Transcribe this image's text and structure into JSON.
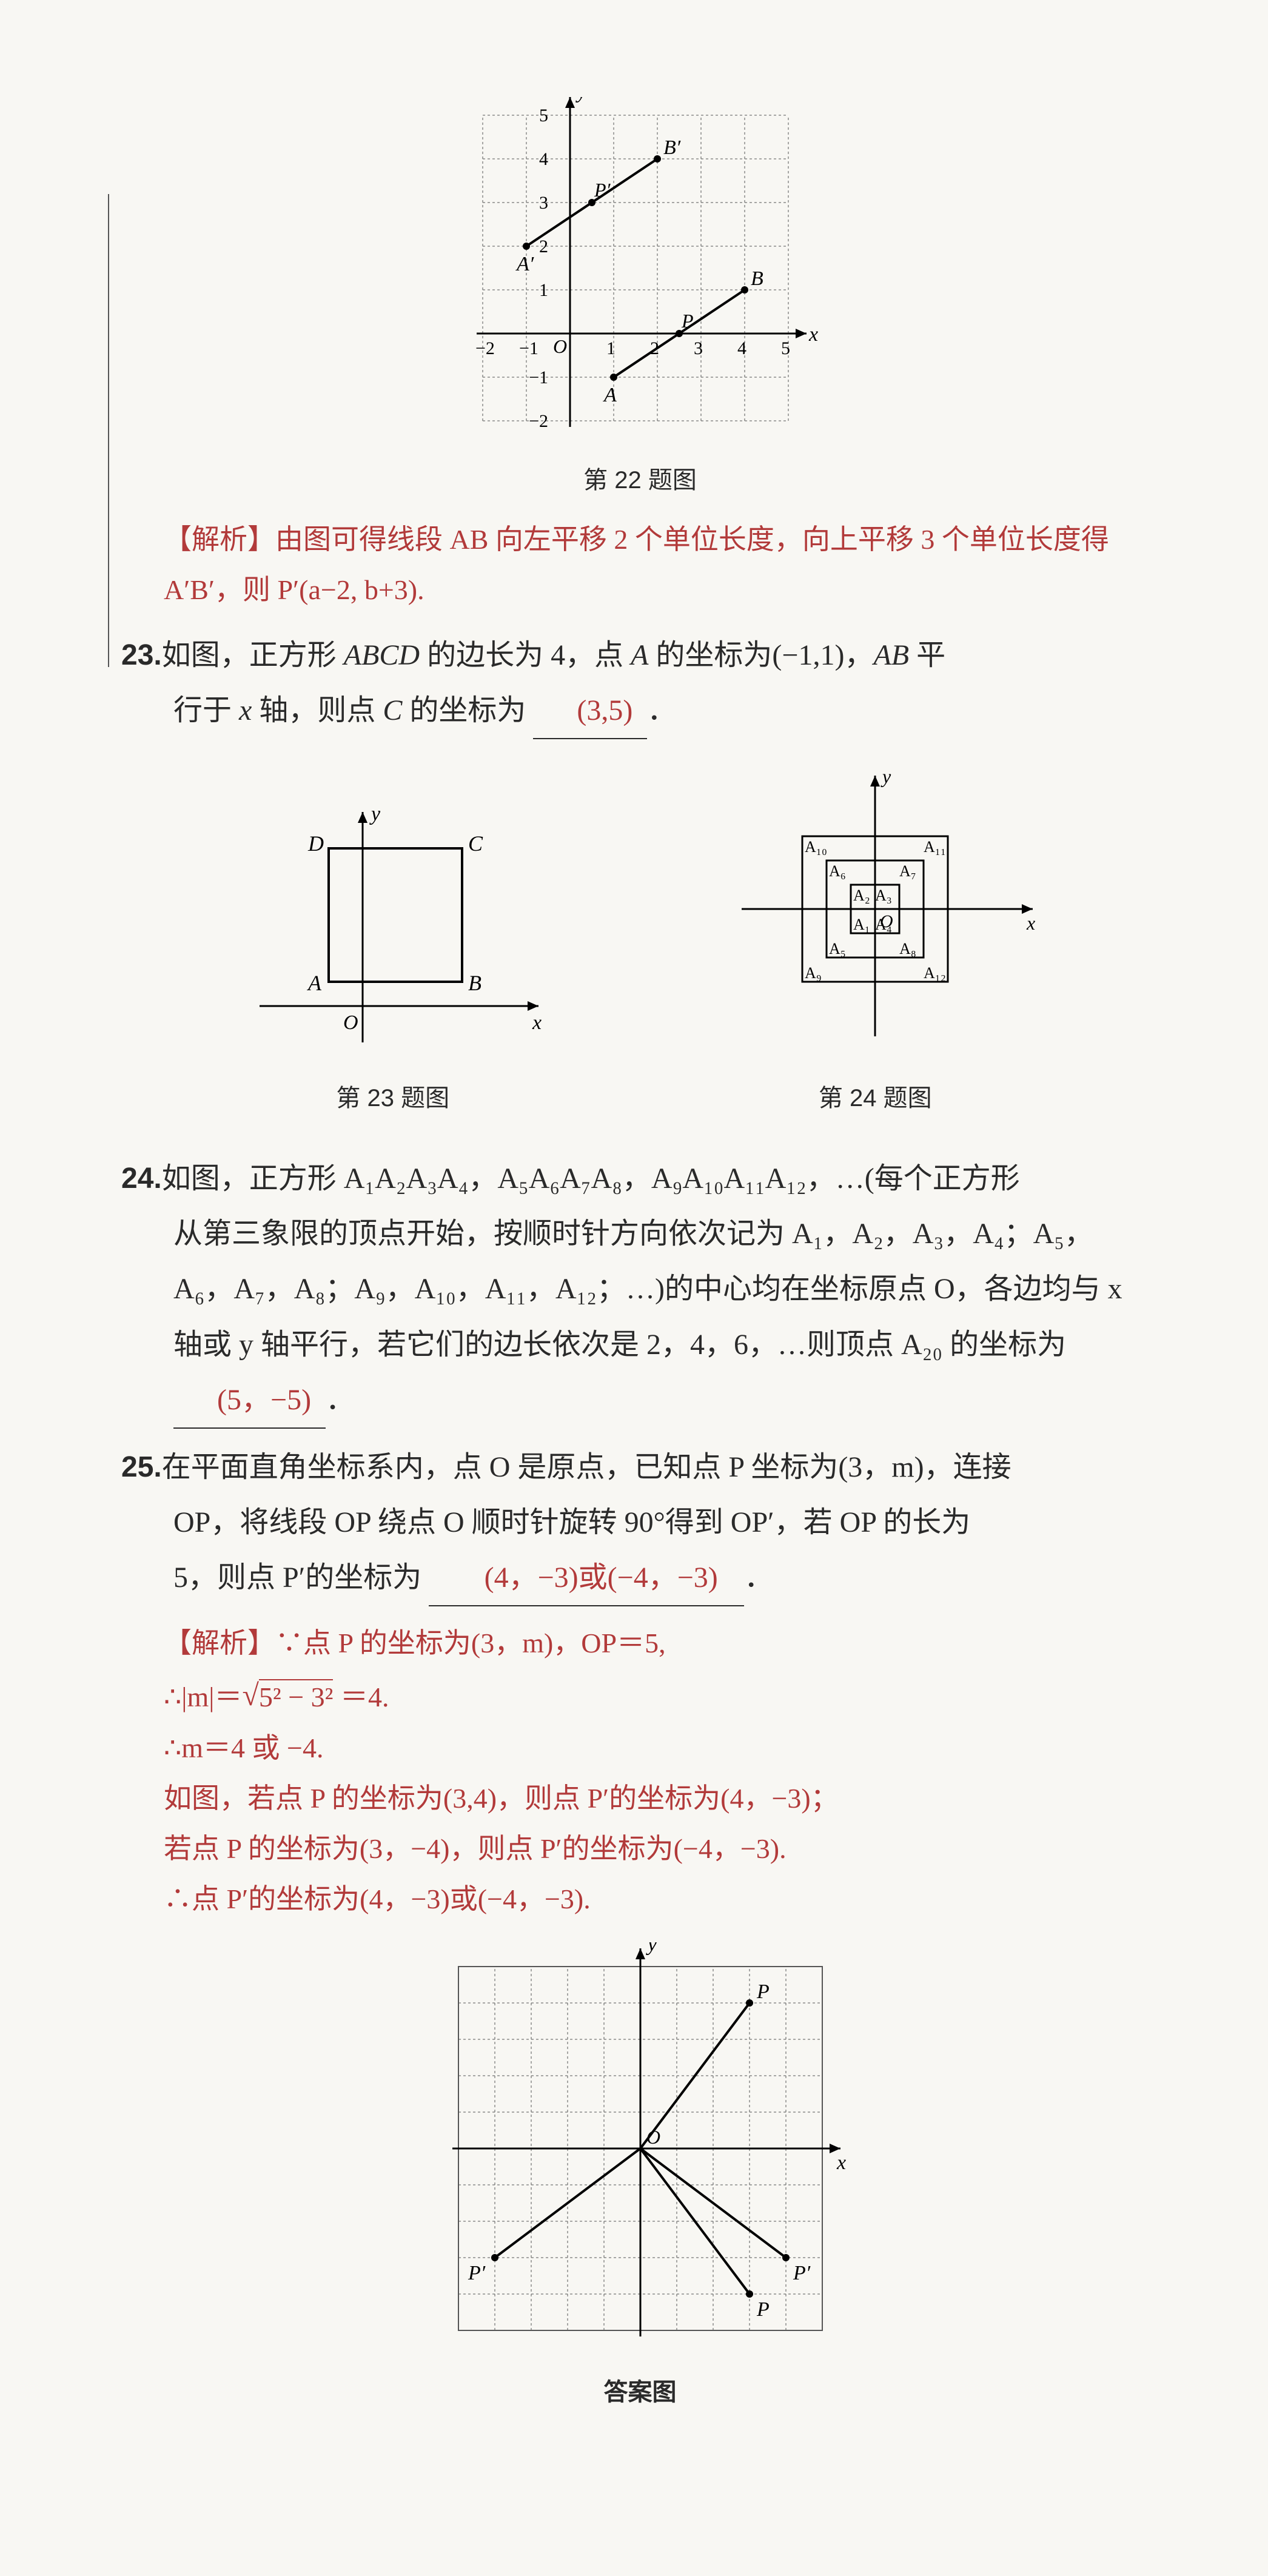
{
  "fig22": {
    "caption": "第 22 题图",
    "grid": {
      "xmin": -2,
      "xmax": 5,
      "ymin": -2,
      "ymax": 5
    },
    "xticks": [
      {
        "v": -2,
        "l": "−2"
      },
      {
        "v": -1,
        "l": "−1"
      },
      {
        "v": 0,
        "l": "O"
      },
      {
        "v": 1,
        "l": "1"
      },
      {
        "v": 2,
        "l": "2"
      },
      {
        "v": 3,
        "l": "3"
      },
      {
        "v": 4,
        "l": "4"
      },
      {
        "v": 5,
        "l": "5"
      }
    ],
    "yticks": [
      {
        "v": -2,
        "l": "−2"
      },
      {
        "v": -1,
        "l": "−1"
      },
      {
        "v": 1,
        "l": "1"
      },
      {
        "v": 2,
        "l": "2"
      },
      {
        "v": 3,
        "l": "3"
      },
      {
        "v": 4,
        "l": "4"
      },
      {
        "v": 5,
        "l": "5"
      }
    ],
    "x_label": "x",
    "y_label": "y",
    "cell": 72,
    "colors": {
      "grid": "#555555",
      "axis": "#000000",
      "point": "#000000",
      "line": "#000000",
      "bg": "#f8f7f3"
    },
    "segments": [
      {
        "from": [
          1,
          -1
        ],
        "to": [
          4,
          1
        ],
        "label_from": "A",
        "label_to": "B",
        "mid": {
          "pt": [
            2.5,
            0
          ],
          "l": "P"
        }
      },
      {
        "from": [
          -1,
          2
        ],
        "to": [
          2,
          4
        ],
        "label_from": "A′",
        "label_to": "B′",
        "mid": {
          "pt": [
            0.5,
            3
          ],
          "l": "P′"
        }
      }
    ]
  },
  "analysis22": "【解析】由图可得线段 AB 向左平移 2 个单位长度，向上平移 3 个单位长度得 A′B′，则 P′(a−2, b+3).",
  "q23": {
    "num": "23.",
    "text_a": "如图，正方形 ",
    "abcd": "ABCD",
    "text_b": " 的边长为 4，点 ",
    "A": "A",
    "text_c": " 的坐标为(−1,1)，",
    "AB": "AB",
    "text_d": " 平",
    "line2_a": "行于 ",
    "xaxis": "x",
    "line2_b": " 轴，则点 ",
    "C": "C",
    "line2_c": " 的坐标为",
    "answer": "(3,5)",
    "period": "．"
  },
  "fig23": {
    "caption": "第 23 题图",
    "x_label": "x",
    "y_label": "y",
    "O": "O",
    "labels": {
      "A": "A",
      "B": "B",
      "C": "C",
      "D": "D"
    },
    "box": {
      "size": 220
    },
    "colors": {
      "line": "#000000"
    }
  },
  "fig24": {
    "caption": "第 24 题图",
    "x_label": "x",
    "y_label": "y",
    "O": "O",
    "squares": [
      {
        "half": 40,
        "labels": {
          "A1": "A₁",
          "A2": "A₂",
          "A3": "A₃",
          "A4": "A₄"
        }
      },
      {
        "half": 80,
        "labels": {
          "A5": "A₅",
          "A6": "A₆",
          "A7": "A₇",
          "A8": "A₈"
        }
      },
      {
        "half": 120,
        "labels": {
          "A9": "A₉",
          "A10": "A₁₀",
          "A11": "A₁₁",
          "A12": "A₁₂"
        }
      }
    ],
    "colors": {
      "line": "#000000"
    }
  },
  "q24": {
    "num": "24.",
    "l1": "如图，正方形 A₁A₂A₃A₄，A₅A₆A₇A₈，A₉A₁₀A₁₁A₁₂，…(每个正方形",
    "l2": "从第三象限的顶点开始，按顺时针方向依次记为 A₁，A₂，A₃，A₄；A₅，",
    "l3": "A₆，A₇，A₈；A₉，A₁₀，A₁₁，A₁₂；…)的中心均在坐标原点 O，各边均与 x",
    "l4a": "轴或 y 轴平行，若它们的边长依次是 2，4，6，…则顶点 A₂₀ 的坐标为",
    "answer": "(5，−5)",
    "period": "．"
  },
  "q25": {
    "num": "25.",
    "l1": "在平面直角坐标系内，点 O 是原点，已知点 P 坐标为(3，m)，连接",
    "l2": "OP，将线段 OP 绕点 O 顺时针旋转 90°得到 OP′，若 OP 的长为",
    "l3a": "5，则点 P′的坐标为",
    "answer": "(4，−3)或(−4，−3)",
    "period": "．"
  },
  "analysis25": {
    "l1": "【解析】∵点 P 的坐标为(3，m)，OP＝5,",
    "l2a": "∴|m|＝",
    "sqrt_inner": "5² − 3²",
    "l2b": "＝4.",
    "l3": "∴m＝4 或 −4.",
    "l4": "如图，若点 P 的坐标为(3,4)，则点 P′的坐标为(4，−3)；",
    "l5": "若点 P 的坐标为(3，−4)，则点 P′的坐标为(−4，−3).",
    "l6": "∴点 P′的坐标为(4，−3)或(−4，−3)."
  },
  "fig25": {
    "caption": "答案图",
    "cell": 60,
    "range": 5,
    "x_label": "x",
    "y_label": "y",
    "O": "O",
    "points": [
      {
        "x": 3,
        "y": 4,
        "l": "P"
      },
      {
        "x": 3,
        "y": -4,
        "l": "P"
      },
      {
        "x": 4,
        "y": -3,
        "l": "P′"
      },
      {
        "x": -4,
        "y": -3,
        "l": "P′"
      }
    ],
    "colors": {
      "grid": "#555555",
      "axis": "#000000",
      "line": "#000000"
    }
  }
}
